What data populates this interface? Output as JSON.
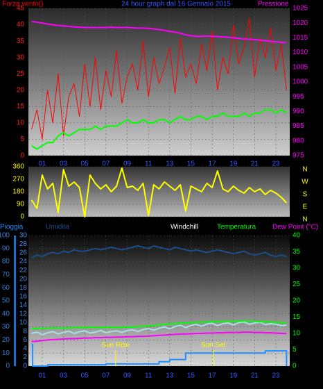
{
  "chart_data": [
    {
      "type": "line",
      "title": "24 hour graph dal   16 Gennaio 2015",
      "ylabel": "Forza vento()",
      "y2label": "Pressione",
      "xlim": [
        -0.3,
        24.3
      ],
      "xticks": [
        {
          "value": 1,
          "label": "01"
        },
        {
          "value": 3,
          "label": "03"
        },
        {
          "value": 5,
          "label": "05"
        },
        {
          "value": 7,
          "label": "07"
        },
        {
          "value": 9,
          "label": "09"
        },
        {
          "value": 11,
          "label": "11"
        },
        {
          "value": 13,
          "label": "13"
        },
        {
          "value": 15,
          "label": "15"
        },
        {
          "value": 17,
          "label": "17"
        },
        {
          "value": 19,
          "label": "19"
        },
        {
          "value": 21,
          "label": "21"
        },
        {
          "value": 23,
          "label": "23"
        }
      ],
      "ylim": [
        0,
        45
      ],
      "yticks": [
        0,
        5,
        10,
        15,
        20,
        25,
        30,
        35,
        40,
        45
      ],
      "y2lim": [
        975,
        1025
      ],
      "y2ticks": [
        975,
        980,
        985,
        990,
        995,
        1000,
        1005,
        1010,
        1015,
        1020,
        1025
      ],
      "x": [
        0,
        0.5,
        1,
        1.5,
        2,
        2.5,
        3,
        3.5,
        4,
        4.5,
        5,
        5.5,
        6,
        6.5,
        7,
        7.5,
        8,
        8.5,
        9,
        9.5,
        10,
        10.5,
        11,
        11.5,
        12,
        12.5,
        13,
        13.5,
        14,
        14.5,
        15,
        15.5,
        16,
        16.5,
        17,
        17.5,
        18,
        18.5,
        19,
        19.5,
        20,
        20.5,
        21,
        21.5,
        22,
        22.5,
        23,
        23.5,
        24
      ],
      "series": [
        {
          "color": "#ff0000",
          "values": [
            8,
            14,
            5,
            20,
            10,
            25,
            6,
            18,
            22,
            12,
            28,
            15,
            30,
            14,
            26,
            18,
            32,
            16,
            24,
            28,
            20,
            35,
            18,
            30,
            22,
            27,
            33,
            19,
            36,
            24,
            28,
            22,
            34,
            26,
            38,
            20,
            30,
            25,
            40,
            28,
            33,
            42,
            24,
            36,
            30,
            39,
            26,
            34,
            20
          ]
        },
        {
          "color": "#00ff00",
          "values": [
            3,
            2,
            3,
            4,
            4,
            6,
            7,
            6,
            7,
            8,
            8,
            8,
            9,
            8,
            9,
            9,
            9,
            10,
            11,
            10,
            10,
            11,
            10,
            10,
            11,
            11,
            10,
            11,
            12,
            11,
            11,
            12,
            12,
            11,
            12,
            12,
            13,
            12,
            12,
            12,
            13,
            12,
            13,
            13,
            14,
            14,
            13,
            14,
            13
          ]
        },
        {
          "color": "#ff00ff",
          "axis": "y2",
          "values": [
            1020.5,
            1020.3,
            1020,
            1019.7,
            1019.4,
            1019.2,
            1019,
            1018.9,
            1018.7,
            1018.6,
            1018.5,
            1018.5,
            1018.5,
            1018.5,
            1018.5,
            1018.6,
            1018.5,
            1018.5,
            1018.5,
            1018.4,
            1018.3,
            1018.3,
            1018.2,
            1018,
            1017.8,
            1017.5,
            1017.2,
            1016.9,
            1016.5,
            1016,
            1015.7,
            1015.5,
            1015.5,
            1015.6,
            1015.5,
            1015.4,
            1015.3,
            1015.2,
            1015,
            1014.8,
            1014.6,
            1014.5,
            1014.4,
            1014.2,
            1014,
            1013.8,
            1013.6,
            1013.5,
            1013.3
          ]
        }
      ]
    },
    {
      "type": "line",
      "xlim": [
        -0.3,
        24.3
      ],
      "ylim": [
        0,
        360
      ],
      "yticks": [
        0,
        90,
        180,
        270,
        360
      ],
      "y2lim": [
        0,
        360
      ],
      "y2ticks": [
        {
          "value": 360,
          "label": "N"
        },
        {
          "value": 270,
          "label": "W"
        },
        {
          "value": 180,
          "label": "S"
        },
        {
          "value": 90,
          "label": "E"
        },
        {
          "value": 0,
          "label": "N"
        }
      ],
      "x": [
        0,
        0.5,
        1,
        1.5,
        2,
        2.5,
        3,
        3.5,
        4,
        4.5,
        5,
        5.5,
        6,
        6.5,
        7,
        7.5,
        8,
        8.5,
        9,
        9.5,
        10,
        10.5,
        11,
        11.5,
        12,
        12.5,
        13,
        13.5,
        14,
        14.5,
        15,
        15.5,
        16,
        16.5,
        17,
        17.5,
        18,
        18.5,
        19,
        19.5,
        20,
        20.5,
        21,
        21.5,
        22,
        22.5,
        23,
        23.5,
        24
      ],
      "series": [
        {
          "color": "#ffff00",
          "values": [
            120,
            60,
            300,
            200,
            240,
            30,
            340,
            220,
            250,
            210,
            0,
            300,
            240,
            200,
            230,
            180,
            220,
            350,
            210,
            220,
            190,
            240,
            10,
            230,
            200,
            250,
            220,
            190,
            230,
            40,
            220,
            200,
            180,
            240,
            210,
            330,
            200,
            180,
            220,
            190,
            170,
            210,
            180,
            200,
            160,
            190,
            170,
            140,
            100
          ]
        }
      ]
    },
    {
      "type": "line",
      "xlim": [
        -0.3,
        24.3
      ],
      "xticks": [
        {
          "value": 1,
          "label": "01"
        },
        {
          "value": 3,
          "label": "03"
        },
        {
          "value": 5,
          "label": "05"
        },
        {
          "value": 7,
          "label": "07"
        },
        {
          "value": 9,
          "label": "09"
        },
        {
          "value": 11,
          "label": "11"
        },
        {
          "value": 13,
          "label": "13"
        },
        {
          "value": 15,
          "label": "15"
        },
        {
          "value": 17,
          "label": "17"
        },
        {
          "value": 19,
          "label": "19"
        },
        {
          "value": 21,
          "label": "21"
        },
        {
          "value": 23,
          "label": "23"
        }
      ],
      "ylim": [
        0,
        100
      ],
      "yticks": [
        0,
        10,
        20,
        30,
        40,
        50,
        60,
        70,
        80,
        90,
        100
      ],
      "y2lim": [
        0,
        30
      ],
      "y2ticks": [
        0,
        2,
        4,
        6,
        8,
        10,
        12,
        14,
        16,
        18,
        20,
        22,
        24,
        26,
        28,
        30
      ],
      "y3lim": [
        0,
        40
      ],
      "y3ticks": [
        0,
        5,
        10,
        15,
        20,
        25,
        30,
        35,
        40
      ],
      "x": [
        0,
        0.5,
        1,
        1.5,
        2,
        2.5,
        3,
        3.5,
        4,
        4.5,
        5,
        5.5,
        6,
        6.5,
        7,
        7.5,
        8,
        8.5,
        9,
        9.5,
        10,
        10.5,
        11,
        11.5,
        12,
        12.5,
        13,
        13.5,
        14,
        14.5,
        15,
        15.5,
        16,
        16.5,
        17,
        17.5,
        18,
        18.5,
        19,
        19.5,
        20,
        20.5,
        21,
        21.5,
        22,
        22.5,
        23,
        23.5,
        24
      ],
      "series": [
        {
          "name": "Pioggia",
          "color": "#1e8fff",
          "axis": "y2",
          "x": [
            0,
            0.1,
            0.1,
            1.5,
            1.5,
            7,
            7,
            12,
            12,
            13,
            13,
            14.5,
            14.5,
            22,
            22,
            24,
            24
          ],
          "values": [
            5,
            5,
            0,
            0,
            0.3,
            0.3,
            0.5,
            0.5,
            1,
            1,
            1.5,
            1.5,
            3,
            3,
            3.5,
            3.5,
            0
          ]
        },
        {
          "name": "Umidita",
          "color": "#1a4f8c",
          "axis": "y",
          "values": [
            83,
            85,
            84,
            86,
            87,
            86,
            88,
            87,
            89,
            88,
            88,
            89,
            90,
            89,
            90,
            91,
            90,
            89,
            90,
            91,
            92,
            91,
            90,
            92,
            91,
            90,
            89,
            91,
            90,
            89,
            88,
            89,
            88,
            87,
            88,
            89,
            88,
            87,
            86,
            87,
            88,
            86,
            85,
            86,
            87,
            85,
            84,
            85,
            84
          ]
        },
        {
          "name": "Windchill",
          "color": "#a8e0e8",
          "axis": "y3",
          "values": [
            10,
            10.4,
            9.6,
            10.2,
            10.6,
            9.8,
            10.3,
            10.7,
            10,
            10.5,
            10.8,
            10.1,
            10.4,
            10.9,
            10.2,
            10.6,
            10.8,
            10.3,
            10.9,
            11.1,
            10.6,
            11.2,
            11.5,
            11,
            11.6,
            12,
            11.4,
            12.1,
            12.5,
            11.8,
            12.4,
            12.8,
            12.2,
            12.9,
            13.1,
            12.4,
            13,
            13.2,
            12.6,
            13.3,
            13.5,
            12.8,
            13.2,
            13.4,
            12.7,
            13,
            12.8,
            12.4,
            12.5
          ]
        },
        {
          "name": "Temperatura",
          "color": "#00ff00",
          "axis": "y3",
          "values": [
            11.5,
            11.5,
            11.6,
            11.6,
            11.7,
            11.7,
            11.6,
            11.7,
            11.8,
            11.8,
            11.8,
            11.9,
            11.8,
            11.8,
            11.9,
            11.9,
            11.8,
            11.9,
            12,
            12,
            12.1,
            12.2,
            12.3,
            12.4,
            12.6,
            12.8,
            12.9,
            13,
            13.1,
            13.2,
            13.3,
            13.4,
            13.5,
            13.5,
            13.6,
            13.6,
            13.7,
            13.7,
            13.8,
            13.7,
            13.8,
            13.8,
            13.7,
            13.6,
            13.6,
            13.5,
            13.4,
            13.3,
            13.2
          ]
        },
        {
          "name": "Dew Point (°C)",
          "color": "#ff00ff",
          "axis": "y3",
          "values": [
            7.5,
            7.6,
            7.8,
            8,
            8.1,
            8.2,
            8.3,
            8.4,
            8.4,
            8.5,
            8.6,
            8.6,
            8.7,
            8.7,
            8.8,
            8.8,
            8.9,
            8.9,
            9,
            9,
            9.1,
            9.1,
            9.2,
            9.3,
            9.4,
            9.5,
            9.6,
            9.7,
            9.8,
            9.8,
            9.9,
            10,
            10,
            10.1,
            10.1,
            10.2,
            10.2,
            10.3,
            10.3,
            10.3,
            10.4,
            10.4,
            10.3,
            10.3,
            10.2,
            10.2,
            10.1,
            10,
            10
          ]
        }
      ],
      "annotations": [
        {
          "text": "Sun Rise",
          "x": 7.9
        },
        {
          "text": "Sun Set",
          "x": 17.1
        }
      ]
    }
  ]
}
